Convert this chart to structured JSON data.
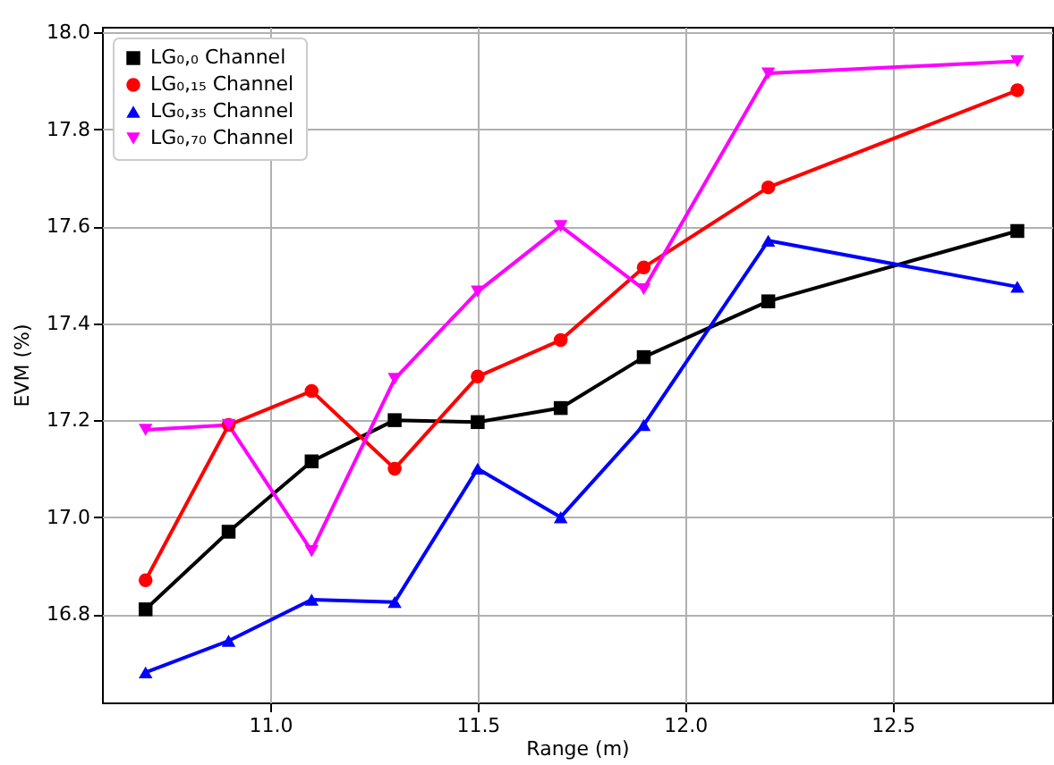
{
  "chart_data": {
    "type": "line",
    "xlabel": "Range (m)",
    "ylabel": "EVM (%)",
    "x": [
      10.7,
      10.9,
      11.1,
      11.3,
      11.5,
      11.7,
      11.9,
      12.2,
      12.8
    ],
    "xlim": [
      10.595,
      12.884
    ],
    "xticks": [
      {
        "value": 11,
        "label": "11.0"
      },
      11.5,
      {
        "value": 12,
        "label": "12.0"
      },
      12.5
    ],
    "ylim": [
      16.618,
      18.011
    ],
    "yticks": [
      16.8,
      {
        "value": 17,
        "label": "17.0"
      },
      17.2,
      17.4,
      17.6,
      17.8,
      {
        "value": 18,
        "label": "18.0"
      }
    ],
    "grid": true,
    "legend": "top left",
    "line_style": "solid",
    "series": [
      {
        "name": "LG₀,₀ Channel",
        "color": "#000000",
        "marker": "square",
        "values": [
          16.81,
          16.97,
          17.115,
          17.2,
          17.196,
          17.225,
          17.33,
          17.445,
          17.59
        ]
      },
      {
        "name": "LG₀,₁₅ Channel",
        "color": "#ff0000",
        "marker": "circle",
        "values": [
          16.87,
          17.19,
          17.26,
          17.1,
          17.29,
          17.365,
          17.515,
          17.68,
          17.88
        ]
      },
      {
        "name": "LG₀,₃₅ Channel",
        "color": "#0000ff",
        "marker": "triangle",
        "values": [
          16.68,
          16.745,
          16.83,
          16.825,
          17.1,
          17.0,
          17.19,
          17.57,
          17.475
        ]
      },
      {
        "name": "LG₀,₇₀ Channel",
        "color": "#ff00ff",
        "marker": "triangle-down",
        "values": [
          17.18,
          17.19,
          16.93,
          17.285,
          17.465,
          17.6,
          17.47,
          17.915,
          17.94
        ]
      }
    ]
  }
}
